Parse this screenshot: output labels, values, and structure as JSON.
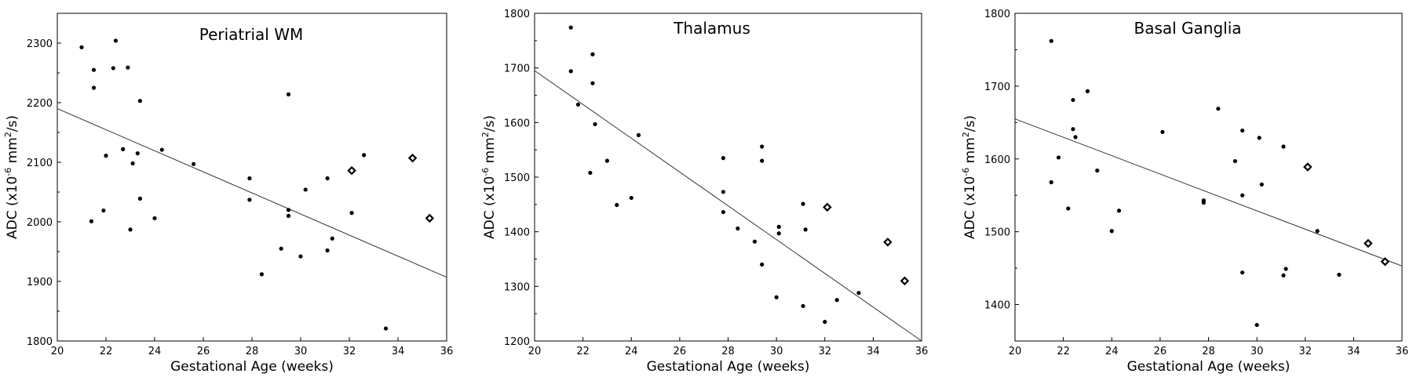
{
  "chart_data": [
    {
      "type": "scatter",
      "title": "Periatrial WM",
      "xlabel": "Gestational Age (weeks)",
      "ylabel_prefix": "ADC (x10",
      "ylabel_exp1": "-6",
      "ylabel_mid": " mm",
      "ylabel_exp2": "2",
      "ylabel_suffix": "/s)",
      "xlim": [
        20,
        36
      ],
      "ylim": [
        1800,
        2350
      ],
      "xticks": [
        20,
        22,
        24,
        26,
        28,
        30,
        32,
        34,
        36
      ],
      "yticks": [
        1800,
        1900,
        2000,
        2100,
        2200,
        2300
      ],
      "points": [
        [
          21.0,
          2293
        ],
        [
          21.5,
          2255
        ],
        [
          21.5,
          2225
        ],
        [
          22.3,
          2258
        ],
        [
          22.4,
          2304
        ],
        [
          22.9,
          2259
        ],
        [
          23.4,
          2203
        ],
        [
          22.0,
          2111
        ],
        [
          22.7,
          2122
        ],
        [
          23.1,
          2098
        ],
        [
          23.3,
          2115
        ],
        [
          24.3,
          2121
        ],
        [
          25.6,
          2097
        ],
        [
          21.4,
          2001
        ],
        [
          21.9,
          2019
        ],
        [
          23.0,
          1987
        ],
        [
          23.4,
          2039
        ],
        [
          24.0,
          2006
        ],
        [
          27.9,
          2073
        ],
        [
          27.9,
          2037
        ],
        [
          28.4,
          1912
        ],
        [
          29.2,
          1955
        ],
        [
          29.5,
          2214
        ],
        [
          29.5,
          2020
        ],
        [
          29.5,
          2010
        ],
        [
          30.0,
          1942
        ],
        [
          30.2,
          2054
        ],
        [
          31.1,
          2073
        ],
        [
          31.1,
          1952
        ],
        [
          31.3,
          1972
        ],
        [
          32.1,
          2015
        ],
        [
          32.6,
          2112
        ],
        [
          33.5,
          1821
        ]
      ],
      "open_points": [
        [
          32.1,
          2086
        ],
        [
          34.6,
          2107
        ],
        [
          35.3,
          2006
        ]
      ],
      "fit": [
        [
          20,
          2190
        ],
        [
          36,
          1907
        ]
      ]
    },
    {
      "type": "scatter",
      "title": "Thalamus",
      "xlabel": "Gestational Age (weeks)",
      "ylabel_prefix": "ADC (x10",
      "ylabel_exp1": "-6",
      "ylabel_mid": " mm",
      "ylabel_exp2": "2",
      "ylabel_suffix": "/s)",
      "xlim": [
        20,
        36
      ],
      "ylim": [
        1200,
        1800
      ],
      "xticks": [
        20,
        22,
        24,
        26,
        28,
        30,
        32,
        34,
        36
      ],
      "yticks": [
        1200,
        1300,
        1400,
        1500,
        1600,
        1700,
        1800
      ],
      "points": [
        [
          21.5,
          1774
        ],
        [
          21.5,
          1694
        ],
        [
          21.8,
          1633
        ],
        [
          22.4,
          1725
        ],
        [
          22.4,
          1672
        ],
        [
          22.5,
          1597
        ],
        [
          22.3,
          1508
        ],
        [
          23.0,
          1530
        ],
        [
          23.4,
          1449
        ],
        [
          24.0,
          1462
        ],
        [
          24.3,
          1577
        ],
        [
          27.8,
          1535
        ],
        [
          27.8,
          1473
        ],
        [
          27.8,
          1436
        ],
        [
          28.4,
          1406
        ],
        [
          29.1,
          1382
        ],
        [
          29.4,
          1556
        ],
        [
          29.4,
          1530
        ],
        [
          29.4,
          1340
        ],
        [
          30.0,
          1280
        ],
        [
          30.1,
          1409
        ],
        [
          30.1,
          1397
        ],
        [
          31.1,
          1451
        ],
        [
          31.2,
          1404
        ],
        [
          31.1,
          1264
        ],
        [
          32.0,
          1235
        ],
        [
          32.5,
          1275
        ],
        [
          33.4,
          1288
        ]
      ],
      "open_points": [
        [
          32.1,
          1445
        ],
        [
          34.6,
          1381
        ],
        [
          35.3,
          1310
        ]
      ],
      "fit": [
        [
          20,
          1695
        ],
        [
          36,
          1200
        ]
      ]
    },
    {
      "type": "scatter",
      "title": "Basal Ganglia",
      "xlabel": "Gestational Age (weeks)",
      "ylabel_prefix": "ADC (x10",
      "ylabel_exp1": "-6",
      "ylabel_mid": " mm",
      "ylabel_exp2": "2",
      "ylabel_suffix": "/s)",
      "xlim": [
        20,
        36
      ],
      "ylim": [
        1350,
        1800
      ],
      "xticks": [
        20,
        22,
        24,
        26,
        28,
        30,
        32,
        34,
        36
      ],
      "yticks": [
        1400,
        1500,
        1600,
        1700,
        1800
      ],
      "points": [
        [
          21.5,
          1762
        ],
        [
          21.5,
          1568
        ],
        [
          21.8,
          1602
        ],
        [
          22.2,
          1532
        ],
        [
          22.4,
          1681
        ],
        [
          22.4,
          1641
        ],
        [
          22.5,
          1630
        ],
        [
          23.0,
          1693
        ],
        [
          23.4,
          1584
        ],
        [
          24.0,
          1501
        ],
        [
          24.3,
          1529
        ],
        [
          26.1,
          1637
        ],
        [
          27.8,
          1543
        ],
        [
          27.8,
          1540
        ],
        [
          28.4,
          1669
        ],
        [
          29.1,
          1597
        ],
        [
          29.4,
          1639
        ],
        [
          29.4,
          1550
        ],
        [
          29.4,
          1444
        ],
        [
          30.0,
          1372
        ],
        [
          30.1,
          1629
        ],
        [
          30.2,
          1565
        ],
        [
          31.1,
          1617
        ],
        [
          31.1,
          1440
        ],
        [
          31.2,
          1449
        ],
        [
          32.5,
          1501
        ],
        [
          33.4,
          1441
        ]
      ],
      "open_points": [
        [
          32.1,
          1589
        ],
        [
          34.6,
          1484
        ],
        [
          35.3,
          1459
        ]
      ],
      "fit": [
        [
          20,
          1655
        ],
        [
          36,
          1453
        ]
      ]
    }
  ]
}
